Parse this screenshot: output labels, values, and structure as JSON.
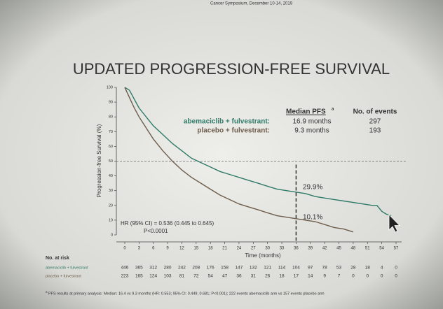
{
  "header": {
    "source": "Cancer Symposium, December 10-14, 2019"
  },
  "chart_data": {
    "type": "line",
    "title": "UPDATED PROGRESSION-FREE SURVIVAL",
    "xlabel": "Time (months)",
    "ylabel": "Progression-free Survival (%)",
    "xlim": [
      0,
      57
    ],
    "ylim": [
      0,
      100
    ],
    "xticks": [
      0,
      3,
      6,
      9,
      12,
      15,
      18,
      21,
      24,
      27,
      30,
      33,
      36,
      39,
      42,
      45,
      48,
      51,
      54,
      57
    ],
    "yticks": [
      0,
      10,
      20,
      30,
      40,
      50,
      60,
      70,
      80,
      90,
      100
    ],
    "hline": 50,
    "vline": 36,
    "series": [
      {
        "name": "abemaciclib + fulvestrant:",
        "color": "#2f7a68",
        "x": [
          0,
          1,
          2,
          3,
          4,
          5,
          6,
          8,
          10,
          12,
          14,
          16,
          18,
          20,
          22,
          24,
          26,
          28,
          30,
          32,
          34,
          36,
          38,
          40,
          42,
          44,
          46,
          48,
          50,
          52,
          53,
          54,
          55,
          56
        ],
        "values": [
          100,
          98,
          92,
          86,
          82,
          78,
          74,
          68,
          62,
          57,
          52,
          49,
          46,
          43,
          41,
          39,
          37,
          35,
          33,
          31,
          30,
          29,
          28,
          26,
          25,
          24,
          23,
          22,
          21,
          20,
          20,
          16,
          14,
          13
        ]
      },
      {
        "name": "placebo + fulvestrant:",
        "color": "#6e5d4c",
        "x": [
          0,
          1,
          2,
          3,
          4,
          5,
          6,
          8,
          10,
          12,
          14,
          16,
          18,
          20,
          22,
          24,
          26,
          28,
          30,
          32,
          34,
          36,
          38,
          40,
          42,
          44,
          46,
          47,
          48
        ],
        "values": [
          100,
          93,
          86,
          80,
          75,
          70,
          65,
          57,
          50,
          44,
          39,
          35,
          31,
          27,
          24,
          21,
          19,
          17,
          15,
          13,
          12,
          11,
          10,
          9,
          7,
          5,
          4,
          3,
          2
        ]
      }
    ],
    "annotations": [
      "29.9%",
      "10.1%",
      "HR (95% CI) = 0.536 (0.445 to 0.645)",
      "P<0.0001"
    ]
  },
  "median_table": {
    "headers": [
      "Median PFS",
      "No. of events"
    ],
    "superscript": "a",
    "rows": [
      [
        "16.9 months",
        "297"
      ],
      [
        "9.3 months",
        "193"
      ]
    ]
  },
  "at_risk": {
    "title": "No. at risk",
    "rows": [
      {
        "label": "abemaciclib + fulvestrant",
        "values": [
          "446",
          "365",
          "312",
          "280",
          "242",
          "208",
          "176",
          "158",
          "147",
          "132",
          "121",
          "114",
          "104",
          "97",
          "78",
          "53",
          "28",
          "18",
          "4",
          "0"
        ]
      },
      {
        "label": "placebo + fulvestrant",
        "values": [
          "223",
          "165",
          "124",
          "103",
          "81",
          "72",
          "54",
          "47",
          "36",
          "31",
          "26",
          "18",
          "17",
          "14",
          "9",
          "7",
          "0",
          "0",
          "0",
          "0"
        ]
      }
    ]
  },
  "footnote": {
    "mark": "a",
    "text": "PFS results at primary analysis: Median: 16.4 vs 9.3 months (HR: 0.553; 95% CI: 0.449, 0.681; P<0.001); 222 events abemaciclib arm vs 157 events placebo arm"
  }
}
